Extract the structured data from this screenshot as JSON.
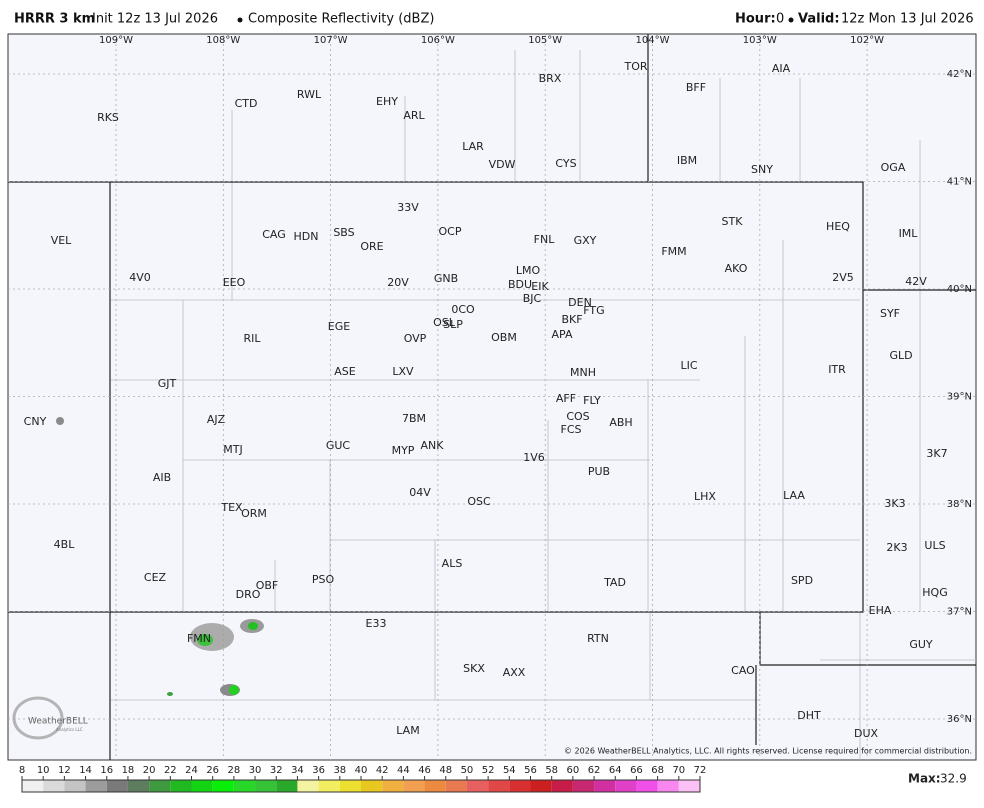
{
  "header": {
    "model": "HRRR 3 km",
    "init": "Init 12z 13 Jul 2026",
    "product": "Composite Reflectivity (dBZ)",
    "hour_label": "Hour:",
    "hour": 0,
    "valid_label": "Valid:",
    "valid": "12z Mon 13 Jul 2026"
  },
  "longitudes": [
    "109°W",
    "108°W",
    "107°W",
    "106°W",
    "105°W",
    "104°W",
    "103°W",
    "102°W"
  ],
  "latitudes": [
    "42°N",
    "41°N",
    "40°N",
    "39°N",
    "38°N",
    "37°N",
    "36°N"
  ],
  "stations": [
    "RKS",
    "CTD",
    "RWL",
    "EHY",
    "ARL",
    "BRX",
    "TOR",
    "AIA",
    "BFF",
    "LAR",
    "VDW",
    "CYS",
    "IBM",
    "SNY",
    "OGA",
    "VEL",
    "33V",
    "OCP",
    "CAG",
    "HDN",
    "SBS",
    "ORE",
    "FNL",
    "GXY",
    "STK",
    "HEQ",
    "IML",
    "FMM",
    "4V0",
    "EEO",
    "20V",
    "GNB",
    "LMO",
    "BDU",
    "EIK",
    "BJC",
    "AKO",
    "2V5",
    "42V",
    "DEN",
    "FTG",
    "0CO",
    "OSL",
    "SLP",
    "BKF",
    "APA",
    "RIL",
    "EGE",
    "OVP",
    "OBM",
    "SYF",
    "GLD",
    "ASE",
    "LXV",
    "MNH",
    "LIC",
    "ITR",
    "GJT",
    "AFF",
    "FLY",
    "COS",
    "FCS",
    "ABH",
    "AJZ",
    "7BM",
    "CNY",
    "MTJ",
    "GUC",
    "MYP",
    "ANK",
    "1V6",
    "3K7",
    "AIB",
    "PUB",
    "04V",
    "OSC",
    "LHX",
    "LAA",
    "3K3",
    "TEX",
    "ORM",
    "4BL",
    "2K3",
    "ULS",
    "ALS",
    "CEZ",
    "PSO",
    "OBF",
    "DRO",
    "TAD",
    "SPD",
    "HQG",
    "EHA",
    "E33",
    "FMN",
    "RTN",
    "GUY",
    "CAO",
    "SKX",
    "AXX",
    "DHT",
    "DUX",
    "LAM"
  ],
  "logo": {
    "name": "WeatherBELL",
    "sub": "Analytics LLC"
  },
  "copyright": "© 2026 WeatherBELL Analytics, LLC. All rights reserved. License required for commercial distribution.",
  "colorbar": {
    "ticks": [
      8,
      10,
      12,
      14,
      16,
      18,
      20,
      22,
      24,
      26,
      28,
      30,
      32,
      34,
      36,
      38,
      40,
      42,
      44,
      46,
      48,
      50,
      52,
      54,
      56,
      58,
      60,
      62,
      64,
      66,
      68,
      70,
      72
    ],
    "colors": [
      "#f0f0f0",
      "#dadada",
      "#c4c4c4",
      "#9c9c9c",
      "#7a7a7a",
      "#5e7d5e",
      "#3f9a3f",
      "#22b822",
      "#12d412",
      "#08ee08",
      "#28d828",
      "#36c236",
      "#2aa82a",
      "#f4f3a0",
      "#f2ee60",
      "#ecdf30",
      "#e8c820",
      "#f0b040",
      "#f0a050",
      "#ec8a40",
      "#e87a50",
      "#e66060",
      "#e04848",
      "#d83030",
      "#cc2020",
      "#c81c48",
      "#c82870",
      "#d030a0",
      "#e040c8",
      "#f050e8",
      "#f888f0",
      "#fbc0f6"
    ]
  },
  "max_label": "Max:",
  "max": 32.9
}
